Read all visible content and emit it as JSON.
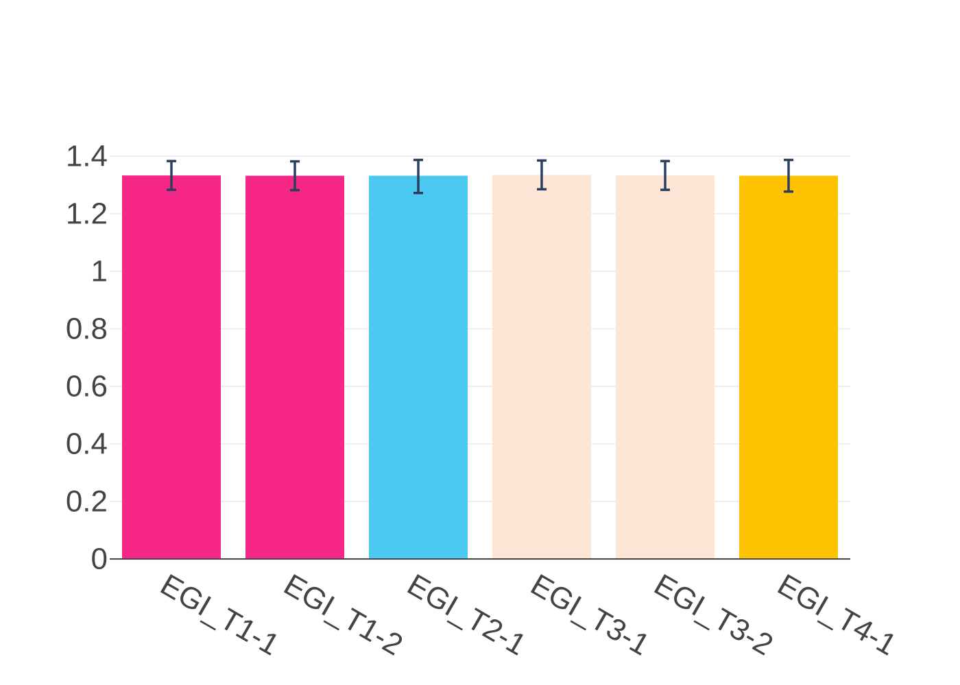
{
  "chart_data": {
    "type": "bar",
    "title": "",
    "xlabel": "",
    "ylabel": "",
    "categories": [
      "EGI_T1-1",
      "EGI_T1-2",
      "EGI_T2-1",
      "EGI_T3-1",
      "EGI_T3-2",
      "EGI_T4-1"
    ],
    "values": [
      1.333,
      1.332,
      1.332,
      1.335,
      1.333,
      1.332
    ],
    "error_low": [
      0.05,
      0.05,
      0.06,
      0.05,
      0.05,
      0.055
    ],
    "error_high": [
      0.05,
      0.05,
      0.055,
      0.05,
      0.05,
      0.055
    ],
    "colors": [
      "#f72788",
      "#f72788",
      "#4bc9f0",
      "#fee6d6",
      "#fee6d6",
      "#fdc300"
    ],
    "ylim": [
      0,
      1.4
    ],
    "yticks": [
      0,
      0.2,
      0.4,
      0.6,
      0.8,
      1,
      1.2,
      1.4
    ],
    "ytick_labels": [
      "0",
      "0.2",
      "0.4",
      "0.6",
      "0.8",
      "1",
      "1.2",
      "1.4"
    ],
    "error_bar_color": "#2a3f5f",
    "grid": true,
    "legend": "none"
  }
}
